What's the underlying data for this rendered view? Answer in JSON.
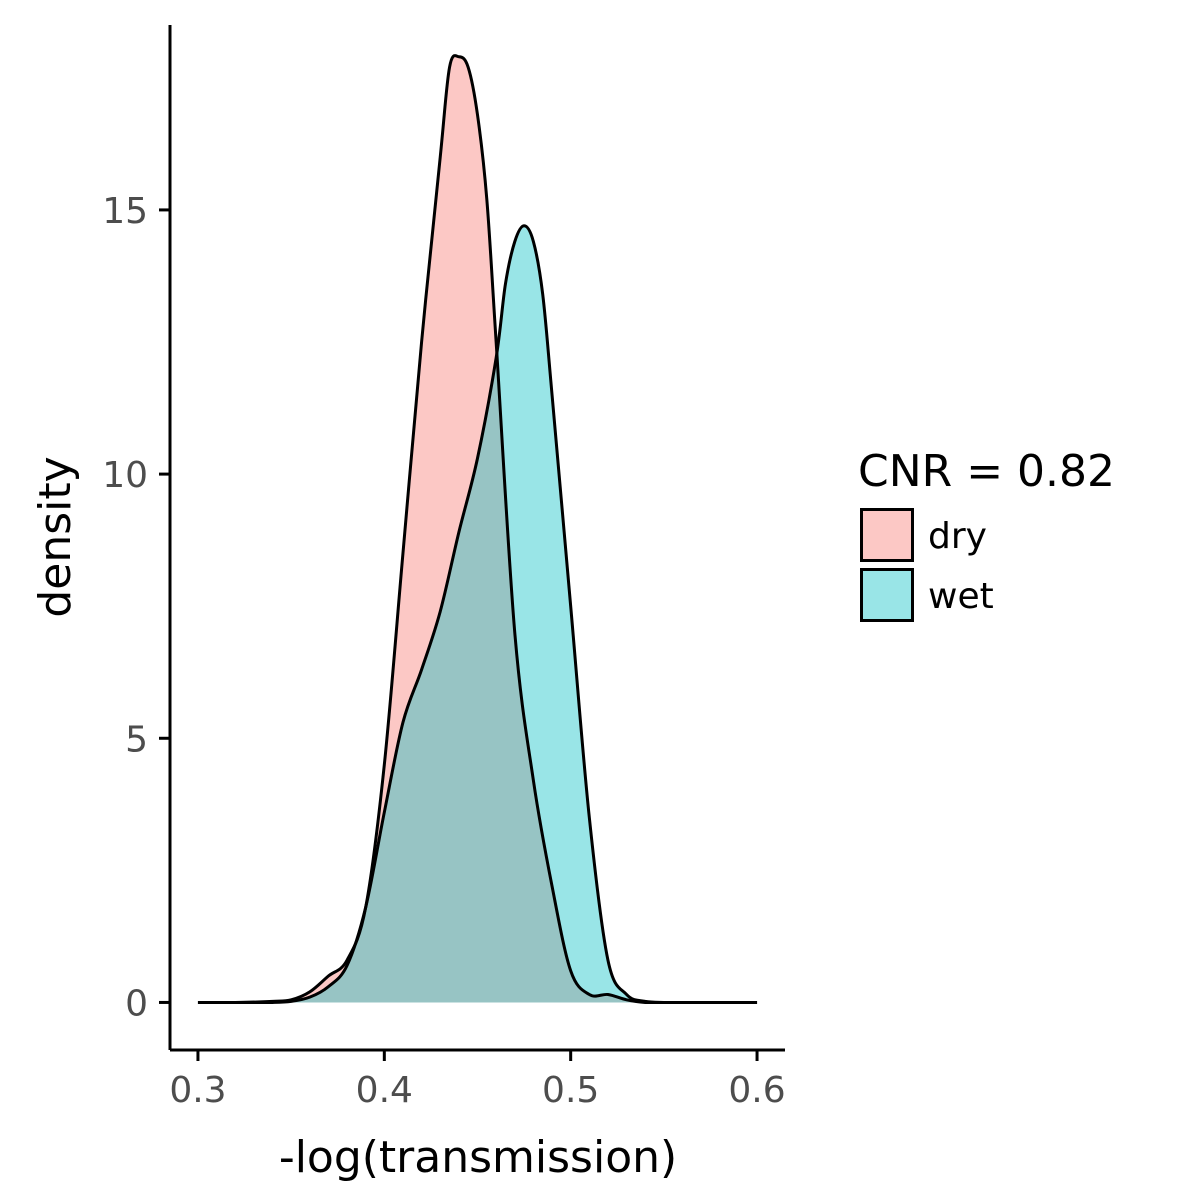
{
  "chart_data": {
    "type": "area",
    "chart_kind": "density",
    "xlabel": "-log(transmission)",
    "ylabel": "density",
    "xlim": [
      0.285,
      0.615
    ],
    "ylim": [
      -0.9,
      18.5
    ],
    "x_ticks": [
      0.3,
      0.4,
      0.5,
      0.6
    ],
    "x_tick_labels": [
      "0.3",
      "0.4",
      "0.5",
      "0.6"
    ],
    "y_ticks": [
      0,
      5,
      10,
      15
    ],
    "y_tick_labels": [
      "0",
      "5",
      "10",
      "15"
    ],
    "grid": false,
    "legend": {
      "title": "CNR = 0.82",
      "position": "right",
      "entries": [
        "dry",
        "wet"
      ]
    },
    "series": [
      {
        "name": "dry",
        "color": "#F8766D",
        "fill_opacity": 0.4,
        "x": [
          0.3,
          0.32,
          0.34,
          0.35,
          0.36,
          0.37,
          0.38,
          0.39,
          0.4,
          0.41,
          0.42,
          0.43,
          0.435,
          0.44,
          0.445,
          0.45,
          0.455,
          0.46,
          0.47,
          0.48,
          0.49,
          0.5,
          0.51,
          0.52,
          0.53,
          0.54,
          0.55,
          0.56,
          0.58,
          0.6
        ],
        "y": [
          0.0,
          0.0,
          0.02,
          0.05,
          0.2,
          0.5,
          0.8,
          1.8,
          4.5,
          8.5,
          12.5,
          16.0,
          17.7,
          17.9,
          17.7,
          16.8,
          15.2,
          12.5,
          7.0,
          4.2,
          2.2,
          0.6,
          0.15,
          0.15,
          0.05,
          0.0,
          0.0,
          0.0,
          0.0,
          0.0
        ]
      },
      {
        "name": "wet",
        "color": "#00BFC4",
        "fill_opacity": 0.4,
        "x": [
          0.3,
          0.32,
          0.34,
          0.35,
          0.36,
          0.37,
          0.38,
          0.39,
          0.4,
          0.41,
          0.42,
          0.43,
          0.44,
          0.45,
          0.46,
          0.465,
          0.47,
          0.475,
          0.48,
          0.485,
          0.49,
          0.5,
          0.51,
          0.52,
          0.53,
          0.54,
          0.55,
          0.56,
          0.58,
          0.6
        ],
        "y": [
          0.0,
          0.0,
          0.0,
          0.02,
          0.1,
          0.3,
          0.7,
          1.8,
          3.6,
          5.3,
          6.3,
          7.4,
          8.9,
          10.3,
          12.2,
          13.6,
          14.4,
          14.7,
          14.4,
          13.4,
          11.5,
          7.5,
          3.5,
          0.8,
          0.15,
          0.02,
          0.0,
          0.0,
          0.0,
          0.0
        ]
      }
    ]
  }
}
